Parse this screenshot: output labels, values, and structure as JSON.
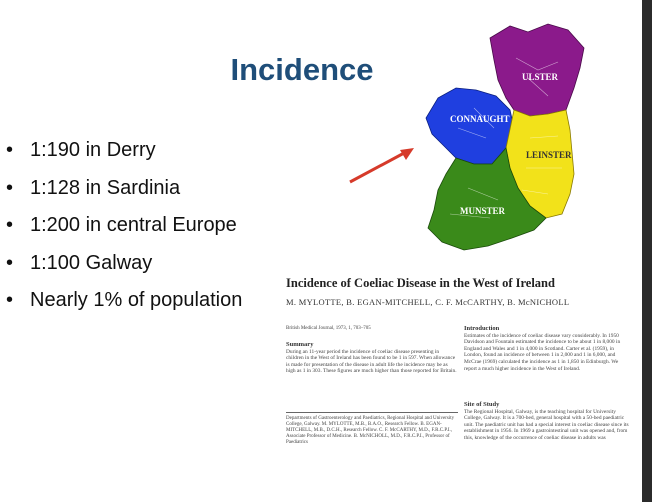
{
  "slide": {
    "title": "Incidence",
    "bullets": [
      "1:190 in Derry",
      "1:128 in Sardinia",
      "1:200 in central Europe",
      "1:100 Galway",
      "Nearly 1% of population"
    ]
  },
  "map": {
    "provinces": [
      {
        "name": "ULSTER",
        "color": "#8b1a8b"
      },
      {
        "name": "CONNAUGHT",
        "color": "#1f3fe0"
      },
      {
        "name": "LEINSTER",
        "color": "#f2e21a"
      },
      {
        "name": "MUNSTER",
        "color": "#3a8a1a"
      }
    ]
  },
  "paper": {
    "title": "Incidence of Coeliac Disease in the West of Ireland",
    "authors": "M. MYLOTTE, B. EGAN-MITCHELL, C. F. McCARTHY, B. McNICHOLL",
    "journal": "British Medical Journal, 1973, 1, 703–705",
    "summary_heading": "Summary",
    "summary_text": "During an 11-year period the incidence of coeliac disease presenting in children in the West of Ireland has been found to be 1 in 597. When allowance is made for presentation of the disease in adult life the incidence may be as high as 1 in 303. These figures are much higher than those reported for Britain.",
    "affiliation": "Departments of Gastroenterology and Paediatrics, Regional Hospital and University College, Galway. M. MYLOTTE, M.B., B.A.O., Research Fellow. B. EGAN-MITCHELL, M.B., D.C.H., Research Fellow. C. F. McCARTHY, M.D., F.R.C.P.I., Associate Professor of Medicine. B. McNICHOLL, M.D., F.R.C.P.I., Professor of Paediatrics",
    "intro_heading": "Introduction",
    "intro_text": "Estimates of the incidence of coeliac disease vary considerably. In 1950 Davidson and Fountain estimated the incidence to be about 1 in 8,000 in England and Wales and 1 in 4,000 in Scotland. Carter et al. (1959), in London, found an incidence of between 1 in 2,000 and 1 in 6,000, and McCrae (1969) calculated the incidence as 1 in 1,850 in Edinburgh. We report a much higher incidence in the West of Ireland.",
    "site_heading": "Site of Study",
    "site_text": "The Regional Hospital, Galway, is the teaching hospital for University College, Galway. It is a 700-bed, general hospital with a 50-bed paediatric unit. The paediatric unit has had a special interest in coeliac disease since its establishment in 1956. In 1969 a gastrointestinal unit was opened and, from this, knowledge of the occurrence of coeliac disease in adults was"
  },
  "colors": {
    "title": "#1f4e79",
    "arrow": "#d63a2a"
  }
}
